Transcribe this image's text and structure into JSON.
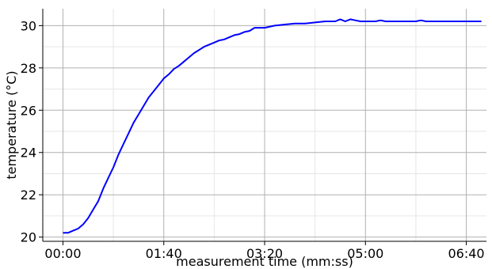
{
  "chart_data": {
    "type": "line",
    "title": "",
    "xlabel": "measurement time (mm:ss)",
    "ylabel": "temperature (°C)",
    "xlim": [
      -20,
      420
    ],
    "ylim": [
      19.8,
      30.8
    ],
    "grid": true,
    "x_ticks": [
      {
        "value": 0,
        "label": "00:00"
      },
      {
        "value": 100,
        "label": "01:40"
      },
      {
        "value": 200,
        "label": "03:20"
      },
      {
        "value": 300,
        "label": "05:00"
      },
      {
        "value": 400,
        "label": "06:40"
      }
    ],
    "y_ticks": [
      {
        "value": 20,
        "label": "20"
      },
      {
        "value": 22,
        "label": "22"
      },
      {
        "value": 24,
        "label": "24"
      },
      {
        "value": 26,
        "label": "26"
      },
      {
        "value": 28,
        "label": "28"
      },
      {
        "value": 30,
        "label": "30"
      }
    ],
    "minor_x": [
      50,
      150,
      250,
      350
    ],
    "minor_y": [
      21,
      23,
      25,
      27,
      29
    ],
    "series": [
      {
        "color": "#0000ff",
        "x": [
          0,
          5,
          10,
          15,
          20,
          25,
          30,
          35,
          40,
          45,
          50,
          55,
          60,
          65,
          70,
          75,
          80,
          85,
          90,
          95,
          100,
          105,
          110,
          115,
          120,
          125,
          130,
          135,
          140,
          145,
          150,
          155,
          160,
          165,
          170,
          175,
          180,
          185,
          190,
          200,
          210,
          220,
          230,
          240,
          250,
          260,
          270,
          275,
          280,
          285,
          290,
          295,
          300,
          310,
          315,
          320,
          330,
          340,
          350,
          355,
          360,
          370,
          380,
          390,
          400,
          415
        ],
        "y": [
          20.2,
          20.2,
          20.3,
          20.4,
          20.6,
          20.9,
          21.3,
          21.7,
          22.3,
          22.8,
          23.3,
          23.9,
          24.4,
          24.9,
          25.4,
          25.8,
          26.2,
          26.6,
          26.9,
          27.2,
          27.5,
          27.7,
          27.95,
          28.1,
          28.3,
          28.5,
          28.7,
          28.85,
          29.0,
          29.1,
          29.2,
          29.3,
          29.35,
          29.45,
          29.55,
          29.6,
          29.7,
          29.75,
          29.9,
          29.9,
          30.0,
          30.05,
          30.1,
          30.1,
          30.15,
          30.2,
          30.2,
          30.3,
          30.2,
          30.3,
          30.25,
          30.2,
          30.2,
          30.2,
          30.25,
          30.2,
          30.2,
          30.2,
          30.2,
          30.25,
          30.2,
          30.2,
          30.2,
          30.2,
          30.2,
          30.2
        ]
      }
    ]
  }
}
